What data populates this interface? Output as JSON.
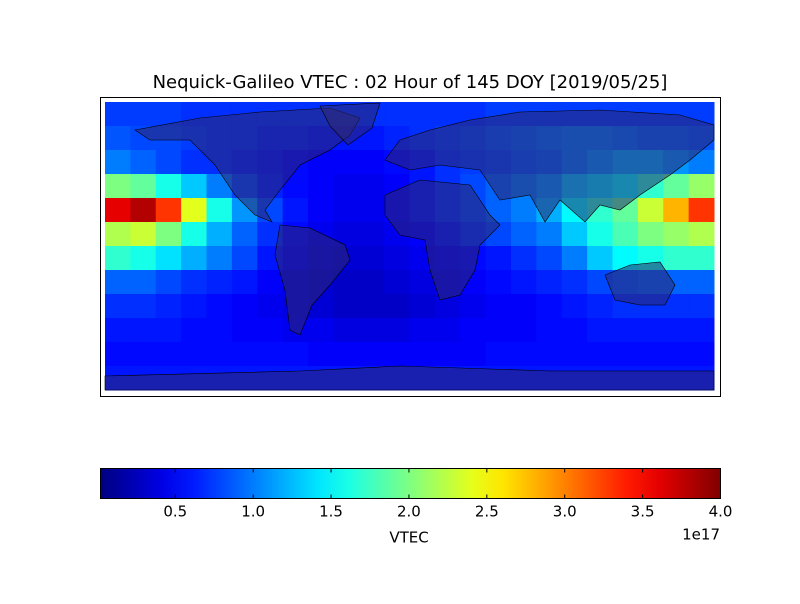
{
  "chart_data": {
    "type": "heatmap",
    "title": "Nequick-Galileo VTEC : 02 Hour of 145 DOY [2019/05/25]",
    "colormap": "jet",
    "xlim": [
      -180,
      180
    ],
    "ylim": [
      -90,
      90
    ],
    "x": [
      -172.5,
      -157.5,
      -142.5,
      -127.5,
      -112.5,
      -97.5,
      -82.5,
      -67.5,
      -52.5,
      -37.5,
      -22.5,
      -7.5,
      7.5,
      22.5,
      37.5,
      52.5,
      67.5,
      82.5,
      97.5,
      112.5,
      127.5,
      142.5,
      157.5,
      172.5
    ],
    "y": [
      82.5,
      67.5,
      52.5,
      37.5,
      22.5,
      7.5,
      -7.5,
      -22.5,
      -37.5,
      -52.5,
      -67.5,
      -82.5
    ],
    "values": [
      [
        0.75,
        0.75,
        0.75,
        0.7,
        0.7,
        0.7,
        0.7,
        0.7,
        0.7,
        0.7,
        0.7,
        0.7,
        0.7,
        0.7,
        0.7,
        0.75,
        0.75,
        0.75,
        0.75,
        0.75,
        0.75,
        0.75,
        0.75,
        0.75
      ],
      [
        0.85,
        0.8,
        0.8,
        0.75,
        0.7,
        0.7,
        0.65,
        0.65,
        0.6,
        0.6,
        0.6,
        0.65,
        0.7,
        0.75,
        0.8,
        0.85,
        0.9,
        0.95,
        1.0,
        1.0,
        0.95,
        0.9,
        0.9,
        0.85
      ],
      [
        1.0,
        0.9,
        0.8,
        0.7,
        0.7,
        0.65,
        0.6,
        0.55,
        0.5,
        0.5,
        0.5,
        0.55,
        0.6,
        0.7,
        0.75,
        0.8,
        0.85,
        0.9,
        1.0,
        1.1,
        1.2,
        1.2,
        1.1,
        1.0
      ],
      [
        2.0,
        1.9,
        1.6,
        1.3,
        1.0,
        0.8,
        0.65,
        0.55,
        0.5,
        0.45,
        0.45,
        0.5,
        0.6,
        0.7,
        0.8,
        0.9,
        1.0,
        1.1,
        1.3,
        1.4,
        1.5,
        1.7,
        1.9,
        2.1
      ],
      [
        3.6,
        3.8,
        3.3,
        2.4,
        1.6,
        1.1,
        0.8,
        0.6,
        0.5,
        0.45,
        0.45,
        0.5,
        0.6,
        0.7,
        0.8,
        0.9,
        1.0,
        1.2,
        1.5,
        1.7,
        1.9,
        2.3,
        2.8,
        3.3
      ],
      [
        2.2,
        2.3,
        2.0,
        1.6,
        1.2,
        0.9,
        0.7,
        0.55,
        0.45,
        0.4,
        0.4,
        0.45,
        0.5,
        0.6,
        0.7,
        0.8,
        0.9,
        1.0,
        1.3,
        1.6,
        1.8,
        2.0,
        2.1,
        2.2
      ],
      [
        1.7,
        1.6,
        1.4,
        1.2,
        1.0,
        0.8,
        0.6,
        0.5,
        0.4,
        0.35,
        0.35,
        0.4,
        0.45,
        0.5,
        0.55,
        0.6,
        0.7,
        0.8,
        1.0,
        1.3,
        1.5,
        1.6,
        1.7,
        1.7
      ],
      [
        0.9,
        0.9,
        0.8,
        0.7,
        0.65,
        0.6,
        0.5,
        0.4,
        0.35,
        0.3,
        0.3,
        0.35,
        0.4,
        0.45,
        0.5,
        0.55,
        0.6,
        0.65,
        0.7,
        0.8,
        0.85,
        0.9,
        0.9,
        0.9
      ],
      [
        0.7,
        0.7,
        0.65,
        0.6,
        0.55,
        0.5,
        0.45,
        0.4,
        0.35,
        0.3,
        0.3,
        0.3,
        0.35,
        0.4,
        0.45,
        0.5,
        0.5,
        0.55,
        0.6,
        0.65,
        0.7,
        0.7,
        0.7,
        0.7
      ],
      [
        0.6,
        0.6,
        0.6,
        0.55,
        0.55,
        0.5,
        0.5,
        0.45,
        0.45,
        0.4,
        0.4,
        0.4,
        0.45,
        0.45,
        0.5,
        0.5,
        0.5,
        0.55,
        0.55,
        0.6,
        0.6,
        0.6,
        0.6,
        0.6
      ],
      [
        0.55,
        0.55,
        0.55,
        0.55,
        0.55,
        0.55,
        0.55,
        0.55,
        0.5,
        0.5,
        0.5,
        0.5,
        0.5,
        0.5,
        0.5,
        0.55,
        0.55,
        0.55,
        0.55,
        0.55,
        0.55,
        0.55,
        0.55,
        0.55
      ],
      [
        0.6,
        0.6,
        0.6,
        0.6,
        0.6,
        0.6,
        0.6,
        0.6,
        0.6,
        0.6,
        0.6,
        0.6,
        0.6,
        0.6,
        0.6,
        0.6,
        0.6,
        0.6,
        0.6,
        0.6,
        0.6,
        0.6,
        0.6,
        0.6
      ]
    ],
    "colorbar": {
      "label": "VTEC",
      "lim": [
        0.02,
        4.0
      ],
      "ticks": [
        0.5,
        {
          "value": 1,
          "label": "1.0"
        },
        1.5,
        {
          "value": 2,
          "label": "2.0"
        },
        2.5,
        {
          "value": 3,
          "label": "3.0"
        },
        3.5,
        {
          "value": 4,
          "label": "4.0"
        }
      ],
      "offset_label": "1e17"
    }
  }
}
